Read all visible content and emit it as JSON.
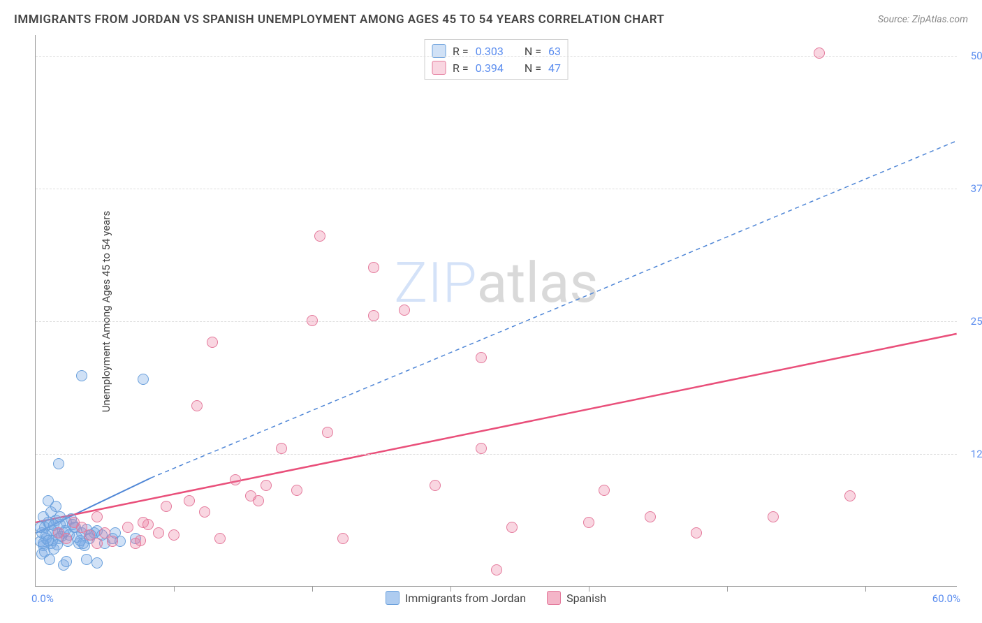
{
  "title": "IMMIGRANTS FROM JORDAN VS SPANISH UNEMPLOYMENT AMONG AGES 45 TO 54 YEARS CORRELATION CHART",
  "source": "Source: ZipAtlas.com",
  "ylabel": "Unemployment Among Ages 45 to 54 years",
  "watermark_part1": "ZIP",
  "watermark_part2": "atlas",
  "chart": {
    "type": "scatter",
    "background_color": "#ffffff",
    "grid_color": "#dddddd",
    "axis_color": "#999999",
    "xlim": [
      0,
      60
    ],
    "ylim": [
      0,
      52
    ],
    "x_min_label": "0.0%",
    "x_max_label": "60.0%",
    "y_ticks": [
      {
        "value": 12.5,
        "label": "12.5%"
      },
      {
        "value": 25.0,
        "label": "25.0%"
      },
      {
        "value": 37.5,
        "label": "37.5%"
      },
      {
        "value": 50.0,
        "label": "50.0%"
      }
    ],
    "x_tick_positions": [
      9,
      18,
      27,
      36,
      45,
      54
    ],
    "y_tick_color": "#5b8def",
    "point_radius": 8,
    "series": [
      {
        "name": "Immigrants from Jordan",
        "color_fill": "rgba(120,170,230,0.35)",
        "color_stroke": "#6aa0dc",
        "R": "0.303",
        "N": "63",
        "trend": {
          "x1": 0,
          "y1": 5.0,
          "x2": 7.5,
          "y2": 10.2,
          "x_ext": 60,
          "y_ext": 42,
          "solid_end_x": 7.5,
          "width": 2,
          "color": "#4f86d6"
        },
        "points": [
          [
            0.3,
            4.2
          ],
          [
            0.4,
            5.0
          ],
          [
            0.5,
            3.8
          ],
          [
            0.6,
            5.5
          ],
          [
            0.7,
            4.5
          ],
          [
            0.8,
            6.0
          ],
          [
            0.5,
            6.5
          ],
          [
            1.0,
            4.0
          ],
          [
            1.1,
            5.2
          ],
          [
            1.2,
            3.5
          ],
          [
            1.3,
            6.2
          ],
          [
            1.4,
            5.0
          ],
          [
            1.5,
            4.5
          ],
          [
            1.6,
            5.8
          ],
          [
            0.4,
            3.0
          ],
          [
            0.6,
            3.2
          ],
          [
            0.9,
            2.5
          ],
          [
            1.8,
            2.0
          ],
          [
            2.0,
            2.3
          ],
          [
            2.2,
            4.8
          ],
          [
            2.5,
            5.5
          ],
          [
            2.8,
            4.0
          ],
          [
            3.0,
            5.0
          ],
          [
            3.2,
            3.8
          ],
          [
            3.5,
            4.5
          ],
          [
            3.8,
            5.0
          ],
          [
            4.0,
            5.2
          ],
          [
            4.3,
            4.8
          ],
          [
            4.5,
            4.0
          ],
          [
            5.0,
            4.5
          ],
          [
            5.2,
            5.0
          ],
          [
            5.5,
            4.2
          ],
          [
            1.0,
            7.0
          ],
          [
            1.3,
            7.5
          ],
          [
            0.8,
            8.0
          ],
          [
            1.5,
            11.5
          ],
          [
            3.0,
            19.8
          ],
          [
            7.0,
            19.5
          ],
          [
            6.5,
            4.5
          ],
          [
            2.0,
            6.0
          ],
          [
            2.3,
            6.3
          ],
          [
            1.8,
            5.0
          ],
          [
            2.6,
            5.5
          ],
          [
            0.7,
            4.8
          ],
          [
            1.1,
            4.3
          ],
          [
            1.4,
            3.9
          ],
          [
            1.7,
            4.7
          ],
          [
            2.1,
            4.2
          ],
          [
            0.3,
            5.5
          ],
          [
            0.9,
            5.8
          ],
          [
            1.6,
            6.5
          ],
          [
            2.4,
            5.8
          ],
          [
            2.9,
            4.3
          ],
          [
            3.3,
            5.3
          ],
          [
            0.5,
            4.0
          ],
          [
            0.8,
            4.3
          ],
          [
            3.3,
            2.5
          ],
          [
            4.0,
            2.2
          ],
          [
            1.2,
            5.7
          ],
          [
            1.9,
            5.2
          ],
          [
            2.7,
            4.6
          ],
          [
            3.1,
            4.0
          ],
          [
            3.6,
            4.8
          ]
        ]
      },
      {
        "name": "Spanish",
        "color_fill": "rgba(235,120,155,0.30)",
        "color_stroke": "#e47a9c",
        "R": "0.394",
        "N": "47",
        "trend": {
          "x1": 0,
          "y1": 6.0,
          "x2": 60,
          "y2": 23.8,
          "solid_end_x": 60,
          "width": 2.5,
          "color": "#e94f7a"
        },
        "points": [
          [
            1.5,
            5.0
          ],
          [
            2.0,
            4.5
          ],
          [
            2.5,
            6.0
          ],
          [
            3.0,
            5.5
          ],
          [
            3.5,
            4.8
          ],
          [
            4.0,
            6.5
          ],
          [
            4.5,
            5.0
          ],
          [
            5.0,
            4.2
          ],
          [
            6.0,
            5.5
          ],
          [
            6.5,
            4.0
          ],
          [
            7.0,
            6.0
          ],
          [
            8.0,
            5.0
          ],
          [
            8.5,
            7.5
          ],
          [
            10.0,
            8.0
          ],
          [
            11.0,
            7.0
          ],
          [
            12.0,
            4.5
          ],
          [
            13.0,
            10.0
          ],
          [
            14.0,
            8.5
          ],
          [
            15.0,
            9.5
          ],
          [
            16.0,
            13.0
          ],
          [
            14.5,
            8.0
          ],
          [
            17.0,
            9.0
          ],
          [
            18.0,
            25.0
          ],
          [
            20.0,
            4.5
          ],
          [
            22.0,
            30.0
          ],
          [
            11.5,
            23.0
          ],
          [
            10.5,
            17.0
          ],
          [
            18.5,
            33.0
          ],
          [
            22.0,
            25.5
          ],
          [
            24.0,
            26.0
          ],
          [
            19.0,
            14.5
          ],
          [
            29.0,
            13.0
          ],
          [
            29.0,
            21.5
          ],
          [
            26.0,
            9.5
          ],
          [
            30.0,
            1.5
          ],
          [
            31.0,
            5.5
          ],
          [
            36.0,
            6.0
          ],
          [
            37.0,
            9.0
          ],
          [
            40.0,
            6.5
          ],
          [
            43.0,
            5.0
          ],
          [
            48.0,
            6.5
          ],
          [
            51.0,
            50.2
          ],
          [
            53.0,
            8.5
          ],
          [
            4.0,
            4.0
          ],
          [
            6.8,
            4.3
          ],
          [
            7.3,
            5.8
          ],
          [
            9.0,
            4.8
          ]
        ]
      }
    ]
  },
  "legend_top": {
    "R_label": "R =",
    "N_label": "N ="
  },
  "legend_bottom": [
    {
      "label": "Immigrants from Jordan",
      "fill": "rgba(120,170,230,0.6)",
      "stroke": "#6aa0dc"
    },
    {
      "label": "Spanish",
      "fill": "rgba(235,120,155,0.55)",
      "stroke": "#e47a9c"
    }
  ]
}
